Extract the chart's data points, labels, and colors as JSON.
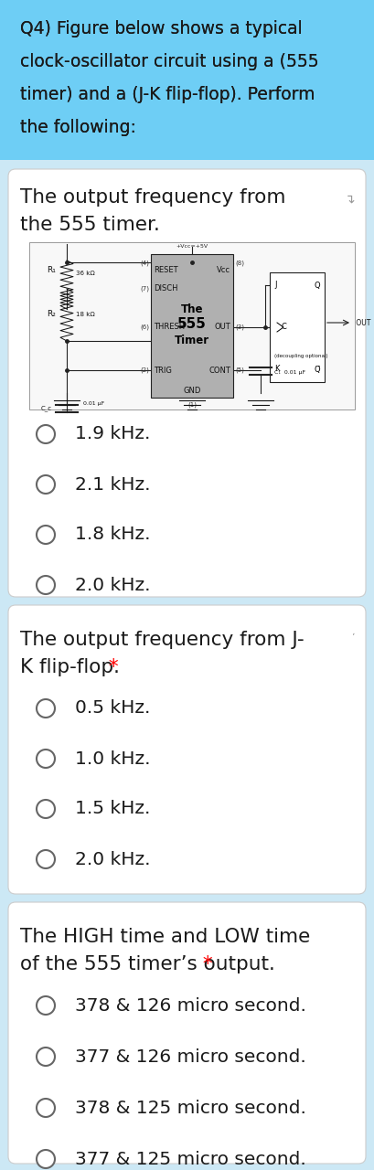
{
  "bg_header_color": "#6ecef5",
  "bg_white_color": "#ffffff",
  "bg_page_color": "#cce8f5",
  "header_text_lines": [
    "Q4) Figure below shows a typical",
    "clock-oscillator circuit using a (555",
    "timer) and a (J-K flip-flop). Perform",
    "the following:"
  ],
  "section1_title_lines": [
    "The output frequency from",
    "the 555 timer."
  ],
  "section1_options": [
    "1.9 kHz.",
    "2.1 kHz.",
    "1.8 kHz.",
    "2.0 kHz."
  ],
  "section2_title_line1": "The output frequency from J-",
  "section2_title_line2": "K flip-flop.",
  "section2_options": [
    "0.5 kHz.",
    "1.0 kHz.",
    "1.5 kHz.",
    "2.0 kHz."
  ],
  "section3_title_line1": "The HIGH time and LOW time",
  "section3_title_line2": "of the 555 timer’s output.",
  "section3_options": [
    "378 & 126 micro second.",
    "377 & 126 micro second.",
    "378 & 125 micro second.",
    "377 & 125 micro second."
  ],
  "text_color": "#1a1a1a",
  "radio_stroke": "#666666",
  "font_size_header": 13.5,
  "font_size_section_title": 15.5,
  "font_size_option": 14.5,
  "font_size_pin": 6.0,
  "font_size_num": 5.0
}
